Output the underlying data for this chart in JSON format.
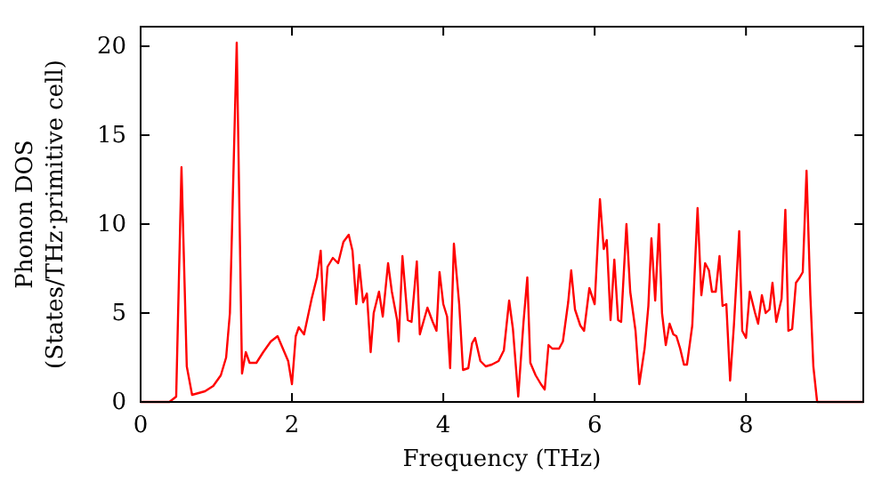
{
  "chart_data": {
    "type": "line",
    "xlabel": "Frequency (THz)",
    "ylabel": "Phonon DOS\n(States/THz·primitive cell)",
    "xlim": [
      0,
      9.55
    ],
    "ylim": [
      0,
      21.1
    ],
    "xticks": [
      0,
      2,
      4,
      6,
      8
    ],
    "yticks": [
      0,
      5,
      10,
      15,
      20
    ],
    "grid": false,
    "marker": "none",
    "line_style": "solid",
    "series": [
      {
        "color": "#ff0000",
        "x": [
          0,
          0.38,
          0.47,
          0.54,
          0.61,
          0.68,
          0.85,
          0.96,
          1.06,
          1.13,
          1.18,
          1.27,
          1.34,
          1.39,
          1.44,
          1.53,
          1.62,
          1.72,
          1.81,
          1.86,
          1.95,
          2.0,
          2.05,
          2.09,
          2.16,
          2.26,
          2.33,
          2.38,
          2.42,
          2.47,
          2.54,
          2.61,
          2.68,
          2.75,
          2.8,
          2.85,
          2.89,
          2.94,
          2.99,
          3.04,
          3.08,
          3.15,
          3.2,
          3.27,
          3.32,
          3.39,
          3.41,
          3.46,
          3.53,
          3.58,
          3.65,
          3.69,
          3.79,
          3.86,
          3.91,
          3.95,
          4.0,
          4.05,
          4.09,
          4.14,
          4.21,
          4.26,
          4.33,
          4.38,
          4.42,
          4.49,
          4.56,
          4.64,
          4.73,
          4.8,
          4.87,
          4.92,
          4.99,
          5.06,
          5.11,
          5.15,
          5.22,
          5.29,
          5.34,
          5.39,
          5.44,
          5.53,
          5.58,
          5.65,
          5.69,
          5.74,
          5.81,
          5.86,
          5.93,
          6.0,
          6.07,
          6.12,
          6.16,
          6.21,
          6.26,
          6.31,
          6.35,
          6.42,
          6.47,
          6.54,
          6.59,
          6.66,
          6.71,
          6.75,
          6.8,
          6.85,
          6.89,
          6.94,
          6.99,
          7.04,
          7.08,
          7.13,
          7.18,
          7.22,
          7.29,
          7.36,
          7.41,
          7.46,
          7.51,
          7.55,
          7.6,
          7.65,
          7.69,
          7.74,
          7.79,
          7.84,
          7.91,
          7.95,
          8.0,
          8.05,
          8.12,
          8.16,
          8.21,
          8.26,
          8.31,
          8.35,
          8.4,
          8.47,
          8.52,
          8.56,
          8.61,
          8.66,
          8.71,
          8.75,
          8.8,
          8.85,
          8.89,
          8.94,
          9.55
        ],
        "values": [
          0,
          0,
          0.3,
          13.2,
          2,
          0.4,
          0.6,
          0.9,
          1.5,
          2.5,
          5,
          20.2,
          1.6,
          2.8,
          2.2,
          2.2,
          2.8,
          3.4,
          3.7,
          3.2,
          2.3,
          1.0,
          3.7,
          4.2,
          3.8,
          5.8,
          7.0,
          8.5,
          4.6,
          7.6,
          8.1,
          7.8,
          9.0,
          9.4,
          8.5,
          5.5,
          7.7,
          5.6,
          6.1,
          2.8,
          5,
          6.2,
          4.8,
          7.8,
          6.2,
          4.6,
          3.4,
          8.2,
          4.6,
          4.5,
          7.9,
          3.8,
          5.3,
          4.5,
          4.0,
          7.3,
          5.5,
          4.8,
          1.9,
          8.9,
          5.5,
          1.8,
          1.9,
          3.3,
          3.6,
          2.3,
          2.0,
          2.1,
          2.3,
          2.9,
          5.7,
          4.1,
          0.3,
          4.5,
          7.0,
          2.2,
          1.5,
          1.0,
          0.7,
          3.2,
          3.0,
          3.0,
          3.4,
          5.6,
          7.4,
          5.2,
          4.3,
          4.0,
          6.4,
          5.5,
          11.4,
          8.6,
          9.1,
          4.6,
          8.0,
          4.6,
          4.5,
          10.0,
          6.2,
          4.0,
          1.0,
          3.0,
          5.4,
          9.2,
          5.7,
          10.0,
          5.0,
          3.2,
          4.4,
          3.8,
          3.7,
          3.0,
          2.1,
          2.1,
          4.3,
          10.9,
          6.0,
          7.8,
          7.4,
          6.2,
          6.2,
          8.2,
          5.4,
          5.5,
          1.2,
          4.3,
          9.6,
          4.0,
          3.6,
          6.2,
          5.0,
          4.4,
          6.0,
          5.0,
          5.2,
          6.7,
          4.5,
          5.8,
          10.8,
          4.0,
          4.1,
          6.7,
          7.0,
          7.3,
          13.0,
          6.0,
          2.0,
          0,
          0
        ]
      }
    ]
  }
}
